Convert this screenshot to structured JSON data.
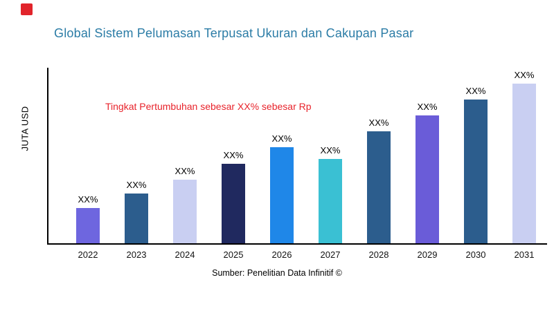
{
  "logo": {
    "color": "#e1242b"
  },
  "header": {
    "title": "Global Sistem Pelumasan Terpusat Ukuran dan Cakupan Pasar",
    "title_color": "#2b7ca6"
  },
  "annotation": {
    "text": "Tingkat Pertumbuhan sebesar XX% sebesar Rp",
    "color": "#e8232b"
  },
  "axes": {
    "y_label": "JUTA USD"
  },
  "footer": {
    "source": "Sumber: Penelitian Data Infinitif ©"
  },
  "chart_data": {
    "type": "bar",
    "title": "Global Sistem Pelumasan Terpusat Ukuran dan Cakupan Pasar",
    "xlabel": "",
    "ylabel": "JUTA USD",
    "categories": [
      "2022",
      "2023",
      "2024",
      "2025",
      "2026",
      "2027",
      "2028",
      "2029",
      "2030",
      "2031"
    ],
    "values": [
      22,
      31,
      40,
      50,
      60,
      53,
      70,
      80,
      90,
      100
    ],
    "ylim": [
      0,
      110
    ],
    "bar_labels": [
      "XX%",
      "XX%",
      "XX%",
      "XX%",
      "XX%",
      "XX%",
      "XX%",
      "XX%",
      "XX%",
      "XX%"
    ],
    "bar_colors": [
      "#6e66df",
      "#2c5d8d",
      "#c9cff2",
      "#20295f",
      "#1f87e8",
      "#3ac0d3",
      "#2c5d8d",
      "#6a5cd8",
      "#2c5d8d",
      "#c9cff2"
    ],
    "annotation": "Tingkat Pertumbuhan sebesar XX% sebesar Rp",
    "grid": false,
    "legend": false
  }
}
